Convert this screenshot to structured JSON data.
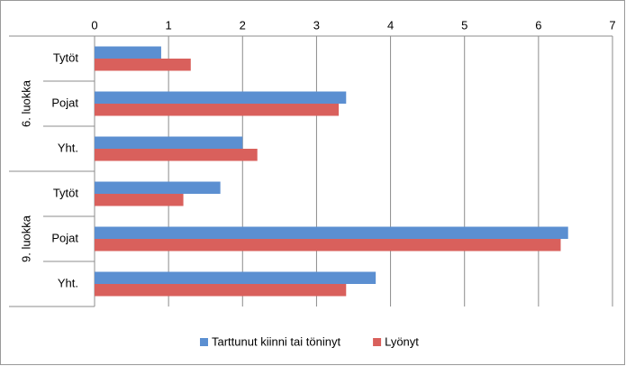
{
  "chart_data": {
    "type": "bar",
    "orientation": "horizontal",
    "groups": [
      {
        "name": "6. luokka",
        "categories": [
          "Tytöt",
          "Pojat",
          "Yht."
        ]
      },
      {
        "name": "9. luokka",
        "categories": [
          "Tytöt",
          "Pojat",
          "Yht."
        ]
      }
    ],
    "series": [
      {
        "name": "Tarttunut kiinni tai töninyt",
        "color": "#5b8fd1",
        "values": [
          0.9,
          3.4,
          2.0,
          1.7,
          6.4,
          3.8
        ]
      },
      {
        "name": "Lyönyt",
        "color": "#d9605c",
        "values": [
          1.3,
          3.3,
          2.2,
          1.2,
          6.3,
          3.4
        ]
      }
    ],
    "xlim": [
      0,
      7
    ],
    "xticks": [
      0,
      1,
      2,
      3,
      4,
      5,
      6,
      7
    ],
    "grid": true,
    "legend": "bottom"
  }
}
